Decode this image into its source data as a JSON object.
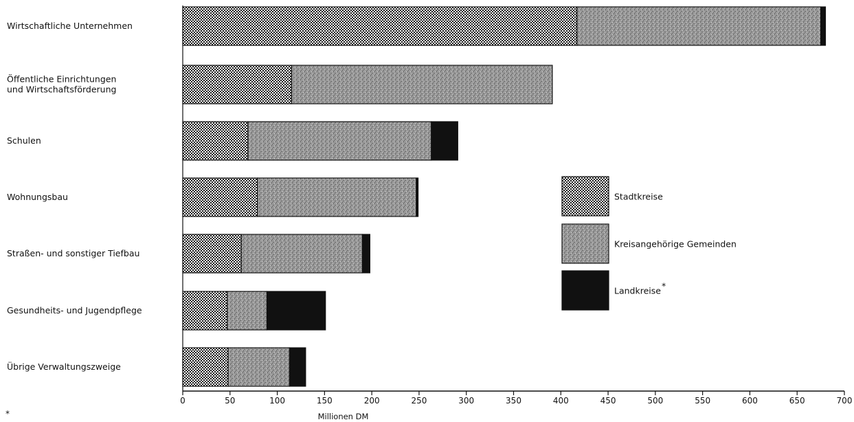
{
  "chart_data": {
    "type": "bar",
    "orientation": "horizontal",
    "stacked": true,
    "categories": [
      [
        "Wirtschaftliche Unternehmen"
      ],
      [
        "Öffentliche Einrichtungen",
        "und Wirtschaftsförderung"
      ],
      [
        "Schulen"
      ],
      [
        "Wohnungsbau"
      ],
      [
        "Straßen- und sonstiger Tiefbau"
      ],
      [
        "Gesundheits- und Jugendpflege"
      ],
      [
        "Übrige Verwaltungszweige"
      ]
    ],
    "series": [
      {
        "name": "Stadtkreise",
        "values": [
          417,
          115,
          69,
          79,
          62,
          47,
          48
        ],
        "pattern": "dots",
        "color": "#ffffff"
      },
      {
        "name": "Kreisangehörige Gemeinden",
        "values": [
          258,
          276,
          194,
          168,
          128,
          42,
          65
        ],
        "pattern": "gray",
        "color": "#8a8a8a"
      },
      {
        "name": "Landkreise",
        "values": [
          5,
          0,
          28,
          2,
          8,
          62,
          17
        ],
        "pattern": "solid",
        "color": "#111111"
      }
    ],
    "x_ticks": [
      0,
      50,
      100,
      150,
      200,
      250,
      300,
      350,
      400,
      450,
      500,
      550,
      600,
      650,
      700
    ],
    "xlim": [
      0,
      700
    ],
    "xlabel": "Millionen DM",
    "legend_position": "right",
    "legend_marker": "*",
    "footnote": "*"
  }
}
